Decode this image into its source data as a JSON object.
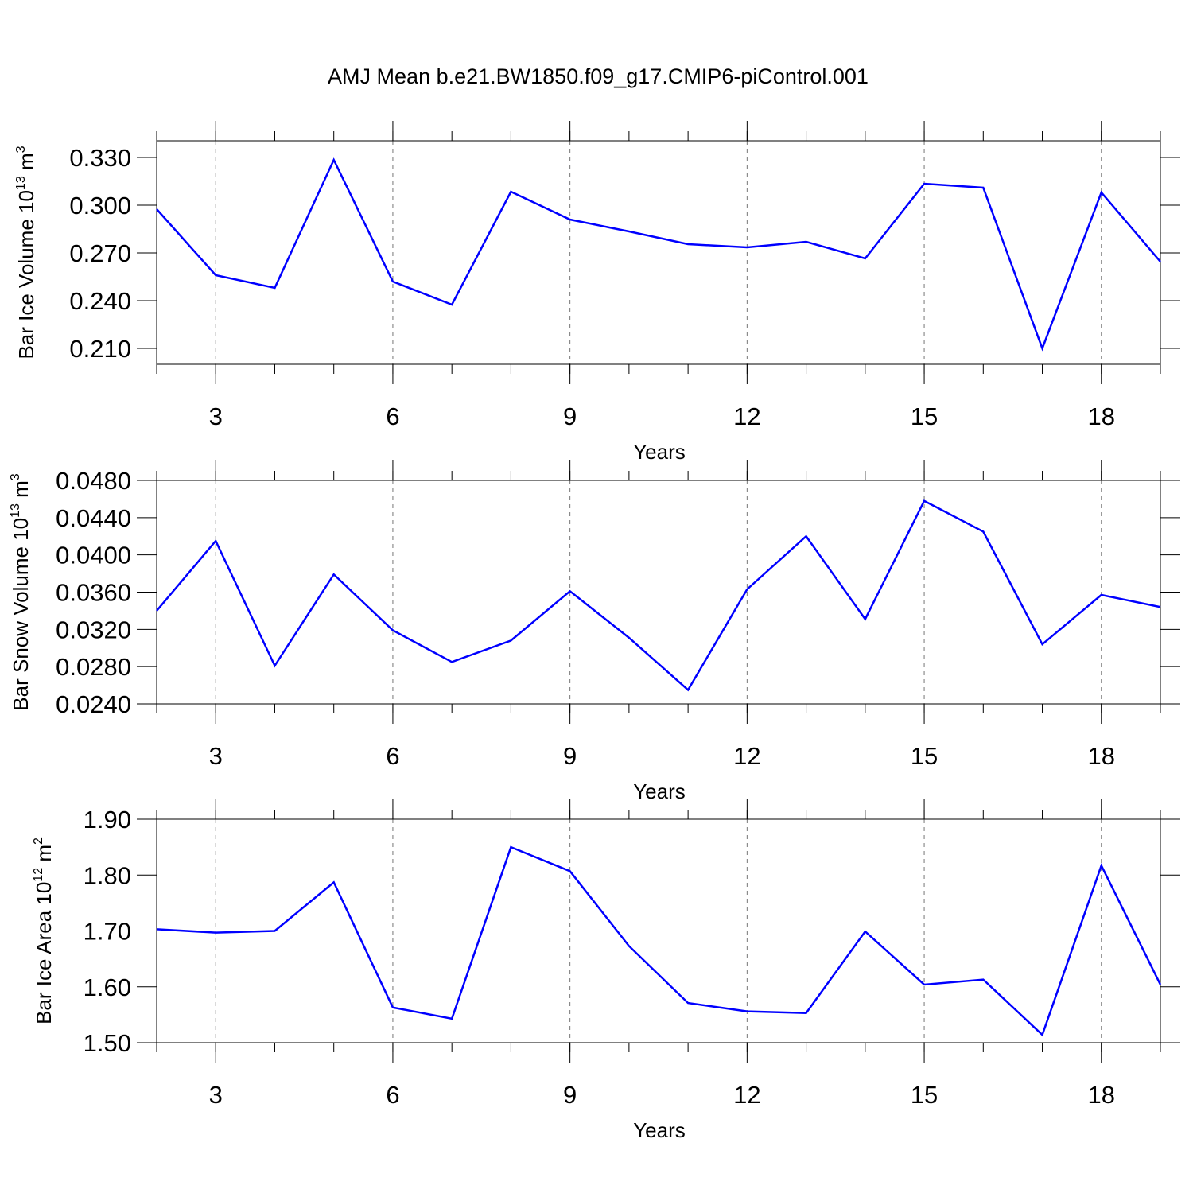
{
  "title": "AMJ Mean b.e21.BW1850.f09_g17.CMIP6-piControl.001",
  "chart_data": [
    {
      "type": "line",
      "ylabel": [
        "Bar Ice Volume 10",
        "13",
        " m",
        "3"
      ],
      "xlabel": "Years",
      "x": [
        2,
        3,
        4,
        5,
        6,
        7,
        8,
        9,
        10,
        11,
        12,
        13,
        14,
        15,
        16,
        17,
        18,
        19
      ],
      "series": [
        {
          "color": "#0000ff",
          "values": [
            0.2975,
            0.256,
            0.248,
            0.3285,
            0.252,
            0.2375,
            0.3085,
            0.291,
            0.2835,
            0.2755,
            0.2735,
            0.277,
            0.2665,
            0.3135,
            0.311,
            0.21,
            0.308,
            0.2645
          ]
        }
      ],
      "xlim": [
        2,
        19
      ],
      "xticks": [
        3,
        6,
        9,
        12,
        15,
        18
      ],
      "ylim": [
        0.2,
        0.3405
      ],
      "yticks": [
        {
          "value": 0.21,
          "label": "0.210"
        },
        {
          "value": 0.24,
          "label": "0.240"
        },
        {
          "value": 0.27,
          "label": "0.270"
        },
        {
          "value": 0.3,
          "label": "0.300"
        },
        {
          "value": 0.33,
          "label": "0.330"
        }
      ],
      "grid": true
    },
    {
      "type": "line",
      "ylabel": [
        "Bar Snow Volume 10",
        "13",
        " m",
        "3"
      ],
      "xlabel": "Years",
      "x": [
        2,
        3,
        4,
        5,
        6,
        7,
        8,
        9,
        10,
        11,
        12,
        13,
        14,
        15,
        16,
        17,
        18,
        19
      ],
      "series": [
        {
          "color": "#0000ff",
          "values": [
            0.034,
            0.0415,
            0.0281,
            0.0379,
            0.0319,
            0.0285,
            0.0308,
            0.0361,
            0.0311,
            0.0255,
            0.0363,
            0.042,
            0.0331,
            0.0458,
            0.0425,
            0.0304,
            0.0357,
            0.0344
          ]
        }
      ],
      "xlim": [
        2,
        19
      ],
      "xticks": [
        3,
        6,
        9,
        12,
        15,
        18
      ],
      "ylim": [
        0.024,
        0.048
      ],
      "yticks": [
        {
          "value": 0.024,
          "label": "0.0240"
        },
        {
          "value": 0.028,
          "label": "0.0280"
        },
        {
          "value": 0.032,
          "label": "0.0320"
        },
        {
          "value": 0.036,
          "label": "0.0360"
        },
        {
          "value": 0.04,
          "label": "0.0400"
        },
        {
          "value": 0.044,
          "label": "0.0440"
        },
        {
          "value": 0.048,
          "label": "0.0480"
        }
      ],
      "grid": true
    },
    {
      "type": "line",
      "ylabel": [
        "Bar Ice Area 10",
        "12",
        " m",
        "2"
      ],
      "xlabel": "Years",
      "x": [
        2,
        3,
        4,
        5,
        6,
        7,
        8,
        9,
        10,
        11,
        12,
        13,
        14,
        15,
        16,
        17,
        18,
        19
      ],
      "series": [
        {
          "color": "#0000ff",
          "values": [
            1.703,
            1.697,
            1.7,
            1.787,
            1.563,
            1.543,
            1.85,
            1.807,
            1.673,
            1.571,
            1.556,
            1.553,
            1.699,
            1.604,
            1.613,
            1.514,
            1.817,
            1.604
          ]
        }
      ],
      "xlim": [
        2,
        19
      ],
      "xticks": [
        3,
        6,
        9,
        12,
        15,
        18
      ],
      "ylim": [
        1.5,
        1.9
      ],
      "yticks": [
        {
          "value": 1.5,
          "label": "1.50"
        },
        {
          "value": 1.6,
          "label": "1.60"
        },
        {
          "value": 1.7,
          "label": "1.70"
        },
        {
          "value": 1.8,
          "label": "1.80"
        },
        {
          "value": 1.9,
          "label": "1.90"
        }
      ],
      "grid": true
    }
  ]
}
